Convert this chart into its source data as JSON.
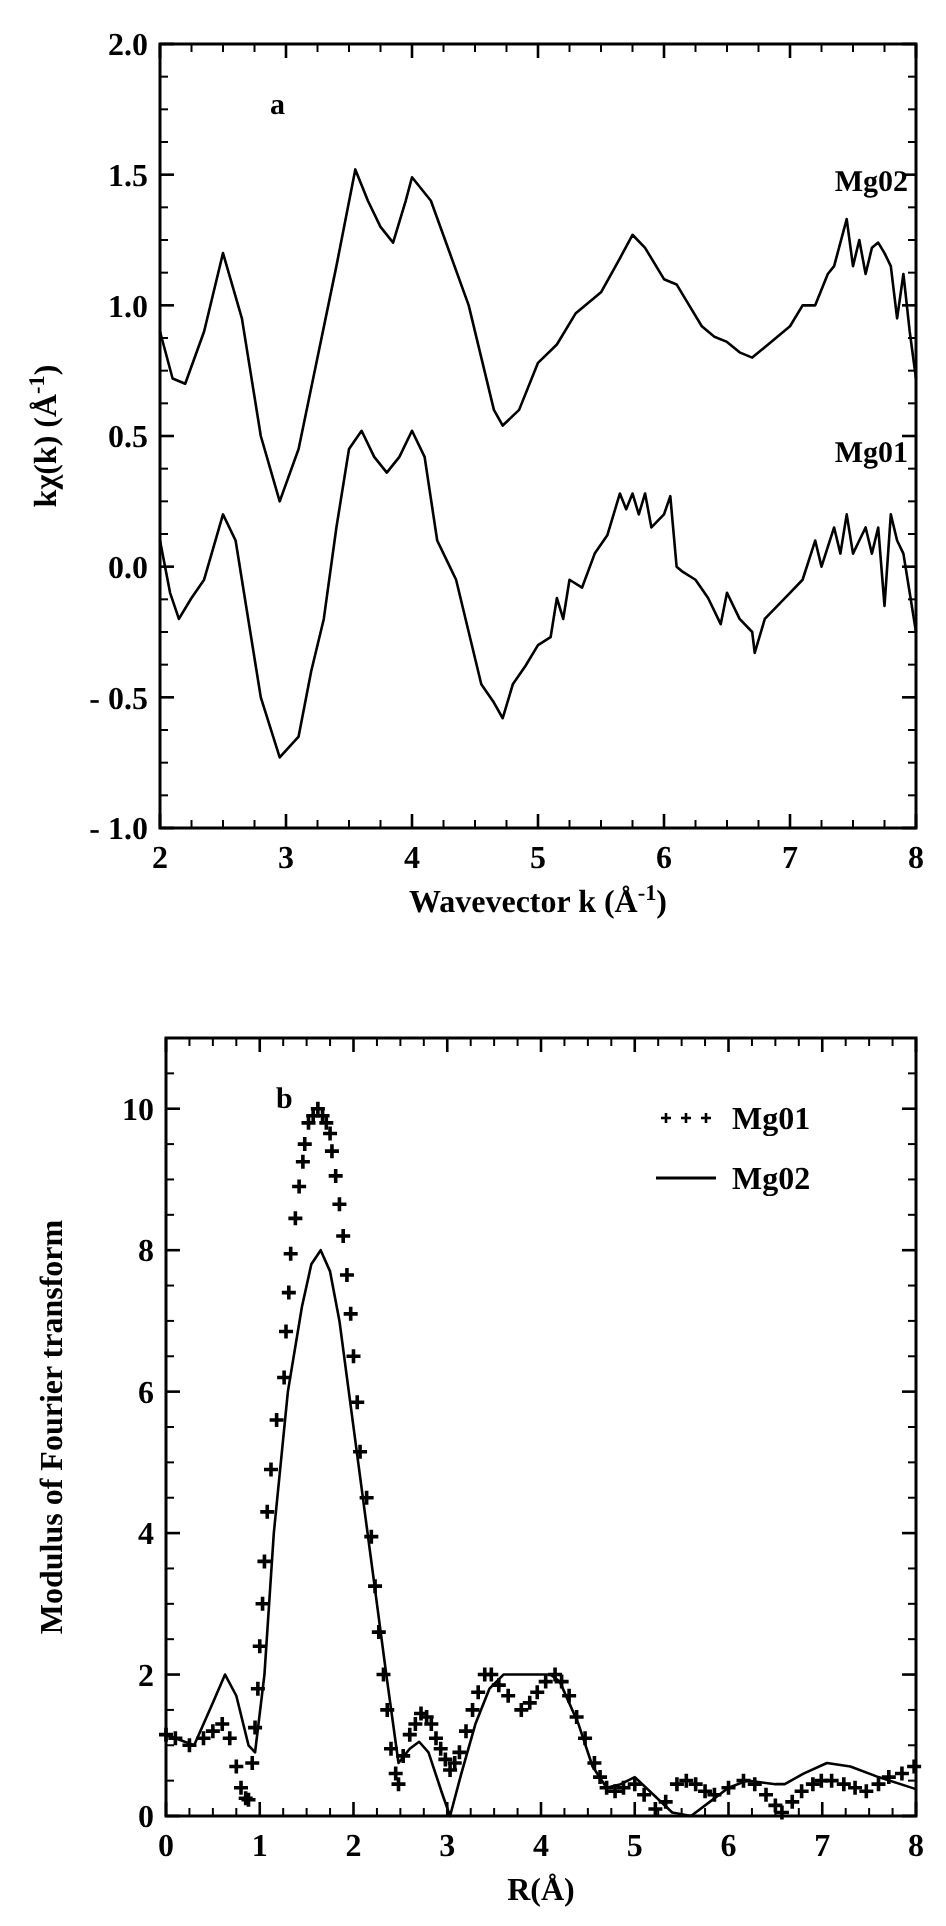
{
  "chart_data": [
    {
      "type": "line",
      "xlabel": "Wavevector k (Å$^{-1}$)",
      "ylabel": "kχ(k) (Å$^{-1}$)",
      "annotations": [
        "a"
      ],
      "xlim": [
        2,
        8
      ],
      "ylim": [
        -1,
        2
      ],
      "xticks": [
        2,
        3,
        4,
        5,
        6,
        7,
        8
      ],
      "yticks": [
        {
          "value": -1,
          "label": "- 1.0"
        },
        {
          "value": -0.5,
          "label": "- 0.5"
        },
        {
          "value": 0,
          "label": "0.0"
        },
        {
          "value": 0.5,
          "label": "0.5"
        },
        {
          "value": 1,
          "label": "1.0"
        },
        {
          "value": 1.5,
          "label": "1.5"
        },
        {
          "value": 2,
          "label": "2.0"
        }
      ],
      "legend": "right",
      "line_style": "solid",
      "marker": "none",
      "series": [
        {
          "name": "Mg02",
          "color": "#000000",
          "x": [
            2.0,
            2.1,
            2.2,
            2.35,
            2.5,
            2.65,
            2.8,
            2.95,
            3.1,
            3.25,
            3.4,
            3.55,
            3.65,
            3.75,
            3.85,
            3.95,
            4.0,
            4.15,
            4.3,
            4.45,
            4.55,
            4.65,
            4.72,
            4.85,
            5.0,
            5.15,
            5.3,
            5.5,
            5.65,
            5.75,
            5.85,
            6.0,
            6.1,
            6.2,
            6.3,
            6.4,
            6.5,
            6.6,
            6.7,
            6.8,
            6.9,
            7.0,
            7.1,
            7.2,
            7.3,
            7.35,
            7.45,
            7.5,
            7.55,
            7.6,
            7.65,
            7.7,
            7.75,
            7.8,
            7.85,
            7.9,
            7.95,
            8.0
          ],
          "values": [
            0.9,
            0.72,
            0.7,
            0.9,
            1.2,
            0.95,
            0.5,
            0.25,
            0.45,
            0.8,
            1.15,
            1.52,
            1.4,
            1.3,
            1.24,
            1.4,
            1.49,
            1.4,
            1.2,
            1.0,
            0.8,
            0.6,
            0.54,
            0.6,
            0.78,
            0.85,
            0.97,
            1.05,
            1.18,
            1.27,
            1.22,
            1.1,
            1.08,
            1.0,
            0.92,
            0.88,
            0.86,
            0.82,
            0.8,
            0.84,
            0.88,
            0.92,
            1.0,
            1.0,
            1.12,
            1.15,
            1.33,
            1.15,
            1.25,
            1.12,
            1.22,
            1.24,
            1.2,
            1.15,
            0.95,
            1.12,
            0.9,
            0.72
          ]
        },
        {
          "name": "Mg01",
          "color": "#000000",
          "x": [
            2.0,
            2.08,
            2.15,
            2.25,
            2.35,
            2.5,
            2.6,
            2.7,
            2.8,
            2.95,
            3.1,
            3.2,
            3.3,
            3.4,
            3.5,
            3.6,
            3.7,
            3.8,
            3.9,
            4.0,
            4.1,
            4.2,
            4.3,
            4.35,
            4.45,
            4.55,
            4.65,
            4.72,
            4.8,
            4.9,
            5.0,
            5.1,
            5.15,
            5.2,
            5.25,
            5.35,
            5.45,
            5.55,
            5.65,
            5.7,
            5.75,
            5.8,
            5.85,
            5.9,
            6.0,
            6.05,
            6.1,
            6.15,
            6.25,
            6.35,
            6.45,
            6.5,
            6.6,
            6.7,
            6.72,
            6.8,
            6.9,
            7.0,
            7.1,
            7.2,
            7.25,
            7.35,
            7.4,
            7.45,
            7.5,
            7.55,
            7.6,
            7.65,
            7.7,
            7.75,
            7.8,
            7.85,
            7.9,
            7.95,
            8.0
          ],
          "values": [
            0.1,
            -0.1,
            -0.2,
            -0.12,
            -0.05,
            0.2,
            0.1,
            -0.2,
            -0.5,
            -0.73,
            -0.65,
            -0.4,
            -0.2,
            0.15,
            0.45,
            0.52,
            0.42,
            0.36,
            0.42,
            0.52,
            0.42,
            0.1,
            0.0,
            -0.05,
            -0.25,
            -0.45,
            -0.52,
            -0.58,
            -0.45,
            -0.38,
            -0.3,
            -0.27,
            -0.12,
            -0.2,
            -0.05,
            -0.08,
            0.05,
            0.12,
            0.28,
            0.22,
            0.28,
            0.2,
            0.28,
            0.15,
            0.2,
            0.27,
            0.0,
            -0.02,
            -0.05,
            -0.12,
            -0.22,
            -0.1,
            -0.2,
            -0.25,
            -0.33,
            -0.2,
            -0.15,
            -0.1,
            -0.05,
            0.1,
            0.0,
            0.15,
            0.05,
            0.2,
            0.05,
            0.1,
            0.15,
            0.05,
            0.15,
            -0.15,
            0.2,
            0.1,
            0.05,
            -0.1,
            -0.25
          ]
        }
      ]
    },
    {
      "type": "line",
      "xlabel": "R(Å)",
      "ylabel": "Modulus of Fourier transform",
      "annotations": [
        "b"
      ],
      "xlim": [
        0,
        8
      ],
      "ylim": [
        0,
        11
      ],
      "xticks": [
        0,
        1,
        2,
        3,
        4,
        5,
        6,
        7,
        8
      ],
      "yticks": [
        0,
        2,
        4,
        6,
        8,
        10
      ],
      "legend": "top right",
      "series": [
        {
          "name": "Mg01",
          "type": "scatter",
          "marker": "cross",
          "color": "#000000",
          "x": [
            0.0,
            0.1,
            0.25,
            0.4,
            0.5,
            0.6,
            0.68,
            0.75,
            0.8,
            0.85,
            0.88,
            0.92,
            0.95,
            0.98,
            1.0,
            1.03,
            1.05,
            1.08,
            1.12,
            1.18,
            1.26,
            1.28,
            1.31,
            1.33,
            1.38,
            1.42,
            1.46,
            1.48,
            1.52,
            1.57,
            1.62,
            1.67,
            1.71,
            1.75,
            1.77,
            1.81,
            1.85,
            1.89,
            1.93,
            1.97,
            2.0,
            2.04,
            2.07,
            2.14,
            2.19,
            2.23,
            2.27,
            2.32,
            2.36,
            2.4,
            2.45,
            2.48,
            2.53,
            2.6,
            2.66,
            2.72,
            2.78,
            2.83,
            2.88,
            2.93,
            2.98,
            3.03,
            3.08,
            3.13,
            3.2,
            3.27,
            3.33,
            3.4,
            3.47,
            3.55,
            3.65,
            3.79,
            3.88,
            3.96,
            4.05,
            4.15,
            4.22,
            4.3,
            4.38,
            4.47,
            4.57,
            4.63,
            4.7,
            4.79,
            4.88,
            5.0,
            5.1,
            5.22,
            5.33,
            5.45,
            5.55,
            5.65,
            5.75,
            5.85,
            6.0,
            6.16,
            6.28,
            6.4,
            6.5,
            6.57,
            6.68,
            6.78,
            6.9,
            6.99,
            7.1,
            7.23,
            7.35,
            7.47,
            7.6,
            7.71,
            7.85,
            7.98
          ],
          "values": [
            1.15,
            1.1,
            1.0,
            1.1,
            1.2,
            1.3,
            1.1,
            0.7,
            0.4,
            0.25,
            0.23,
            0.75,
            1.25,
            1.8,
            2.4,
            3.0,
            3.6,
            4.3,
            4.9,
            5.6,
            6.2,
            6.85,
            7.4,
            7.95,
            8.45,
            8.9,
            9.25,
            9.5,
            9.8,
            9.9,
            10.0,
            9.9,
            9.8,
            9.65,
            9.4,
            9.05,
            8.65,
            8.2,
            7.65,
            7.1,
            6.5,
            5.85,
            5.15,
            4.5,
            3.95,
            3.25,
            2.6,
            2.0,
            1.5,
            0.95,
            0.6,
            0.45,
            0.85,
            1.15,
            1.3,
            1.45,
            1.4,
            1.3,
            1.1,
            0.95,
            0.8,
            0.65,
            0.75,
            0.9,
            1.2,
            1.5,
            1.75,
            2.0,
            2.0,
            1.85,
            1.7,
            1.5,
            1.6,
            1.75,
            1.9,
            2.0,
            1.9,
            1.7,
            1.4,
            1.1,
            0.75,
            0.55,
            0.4,
            0.35,
            0.4,
            0.45,
            0.3,
            0.1,
            0.2,
            0.45,
            0.5,
            0.45,
            0.35,
            0.3,
            0.4,
            0.5,
            0.45,
            0.3,
            0.15,
            0.05,
            0.2,
            0.35,
            0.45,
            0.5,
            0.5,
            0.45,
            0.4,
            0.35,
            0.45,
            0.55,
            0.6,
            0.7
          ]
        },
        {
          "name": "Mg02",
          "type": "line",
          "line_style": "solid",
          "color": "#000000",
          "x": [
            0.0,
            0.3,
            0.5,
            0.63,
            0.75,
            0.88,
            0.95,
            1.05,
            1.15,
            1.3,
            1.45,
            1.55,
            1.65,
            1.75,
            1.85,
            1.95,
            2.05,
            2.2,
            2.35,
            2.48,
            2.6,
            2.7,
            2.8,
            2.95,
            3.03,
            3.15,
            3.3,
            3.45,
            3.6,
            4.1,
            4.2,
            4.4,
            4.55,
            4.7,
            4.85,
            5.0,
            5.2,
            5.4,
            5.6,
            5.8,
            6.0,
            6.2,
            6.5,
            6.6,
            6.8,
            7.05,
            7.3,
            7.6,
            8.0
          ],
          "values": [
            1.15,
            1.0,
            1.6,
            2.0,
            1.7,
            1.0,
            0.9,
            2.0,
            4.0,
            6.0,
            7.2,
            7.8,
            8.0,
            7.7,
            7.0,
            6.0,
            5.0,
            3.5,
            2.0,
            0.75,
            0.95,
            1.05,
            0.9,
            0.3,
            0.0,
            0.6,
            1.3,
            1.8,
            2.0,
            2.0,
            1.9,
            1.3,
            0.7,
            0.4,
            0.45,
            0.55,
            0.3,
            0.05,
            0.0,
            0.2,
            0.4,
            0.5,
            0.45,
            0.45,
            0.6,
            0.75,
            0.7,
            0.55,
            0.38
          ]
        }
      ]
    }
  ]
}
